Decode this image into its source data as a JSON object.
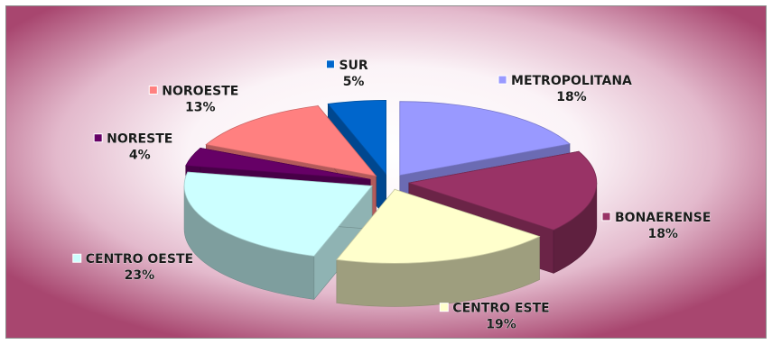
{
  "chart_data": {
    "type": "pie",
    "style": "exploded-3d",
    "unit": "%",
    "categories": [
      "METROPOLITANA",
      "BONAERENSE",
      "CENTRO ESTE",
      "CENTRO OESTE",
      "NORESTE",
      "NOROESTE",
      "SUR"
    ],
    "values": [
      18,
      18,
      19,
      23,
      4,
      13,
      5
    ],
    "colors": [
      "#9999ff",
      "#993366",
      "#ffffcc",
      "#ccffff",
      "#660066",
      "#ff8080",
      "#0066cc"
    ],
    "value_labels": [
      "18%",
      "18%",
      "19%",
      "23%",
      "4%",
      "13%",
      "5%"
    ],
    "legend_placement": "labels beside slices",
    "background": [
      "#ffffff",
      "#a8466f"
    ]
  }
}
